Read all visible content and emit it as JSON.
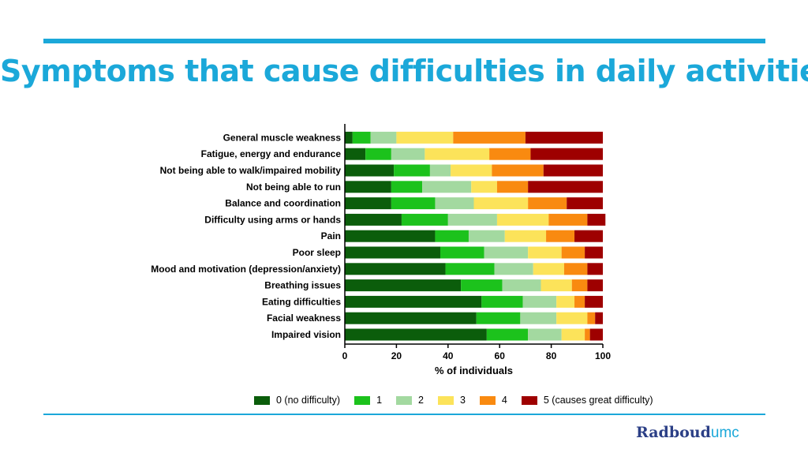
{
  "slide": {
    "title": "Symptoms that cause difficulties in daily activities"
  },
  "logo": {
    "part1": "Radboud",
    "part2": "umc"
  },
  "chart_data": {
    "type": "bar",
    "orientation": "horizontal",
    "stacked": true,
    "xlabel": "% of individuals",
    "xlim": [
      0,
      100
    ],
    "xticks": [
      "0",
      "20",
      "40",
      "60",
      "80",
      "100"
    ],
    "grid": false,
    "legend_placement": "bottom",
    "categories": [
      "General muscle weakness",
      "Fatigue, energy and endurance",
      "Not being able to walk/impaired mobility",
      "Not being able to run",
      "Balance and coordination",
      "Difficulty using arms or hands",
      "Pain",
      "Poor sleep",
      "Mood and motivation (depression/anxiety)",
      "Breathing issues",
      "Eating difficulties",
      "Facial weakness",
      "Impaired vision"
    ],
    "series": [
      {
        "name": "0 (no difficulty)",
        "color": "#0b5d0b",
        "values": [
          3,
          8,
          19,
          18,
          18,
          22,
          35,
          37,
          39,
          45,
          53,
          51,
          55
        ]
      },
      {
        "name": "1",
        "color": "#1cc21c",
        "values": [
          7,
          10,
          14,
          12,
          17,
          18,
          13,
          17,
          19,
          16,
          16,
          17,
          16
        ]
      },
      {
        "name": "2",
        "color": "#a3d9a0",
        "values": [
          10,
          13,
          8,
          19,
          15,
          19,
          14,
          17,
          15,
          15,
          13,
          14,
          13
        ]
      },
      {
        "name": "3",
        "color": "#fce35a",
        "values": [
          22,
          25,
          16,
          10,
          21,
          20,
          16,
          13,
          12,
          12,
          7,
          12,
          9
        ]
      },
      {
        "name": "4",
        "color": "#f98a10",
        "values": [
          28,
          16,
          20,
          12,
          15,
          15,
          11,
          9,
          9,
          6,
          4,
          3,
          2
        ]
      },
      {
        "name": "5 (causes great difficulty)",
        "color": "#9e0000",
        "values": [
          30,
          28,
          23,
          29,
          14,
          7,
          11,
          7,
          6,
          6,
          7,
          3,
          5
        ]
      }
    ]
  }
}
